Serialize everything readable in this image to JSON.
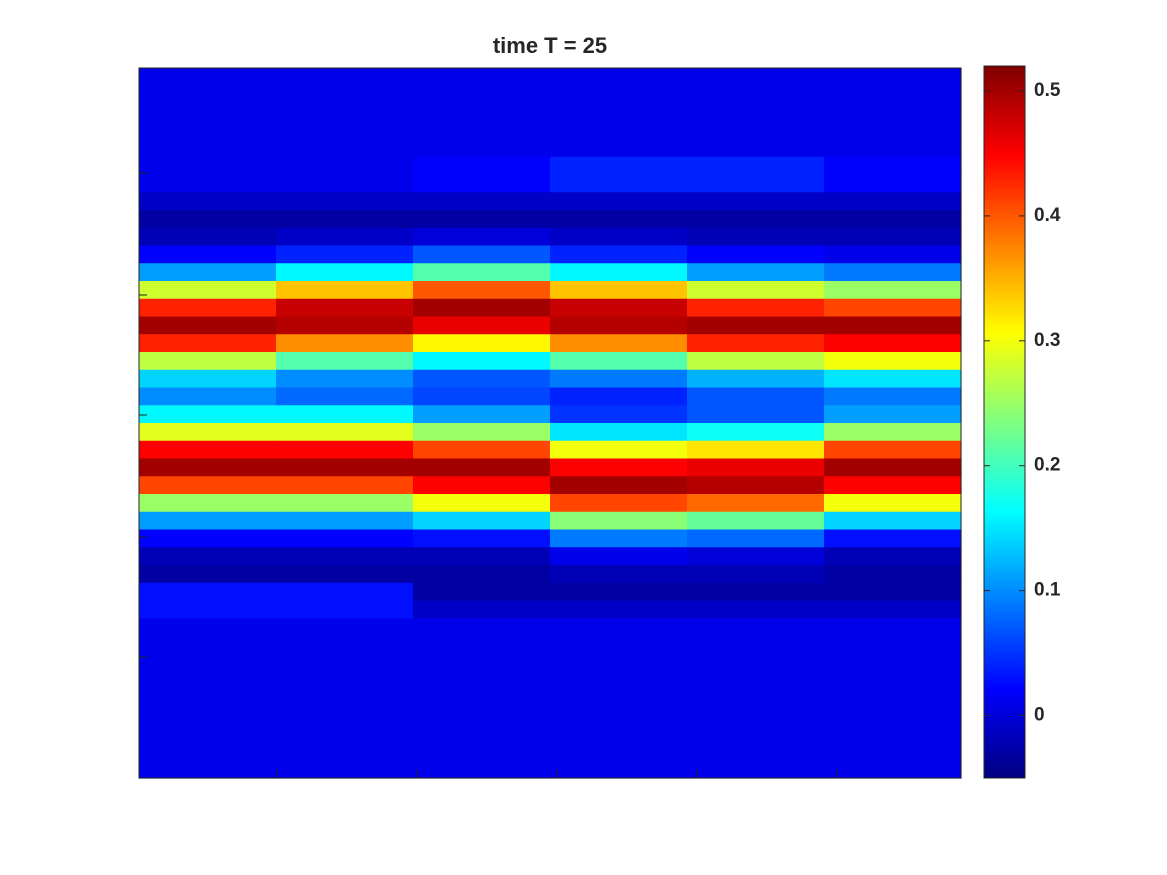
{
  "chart_data": {
    "type": "heatmap",
    "title": "time T = 25",
    "colormap": "jet",
    "clim": [
      -0.05,
      0.52
    ],
    "cticks": [
      0,
      0.1,
      0.2,
      0.3,
      0.4,
      0.5
    ],
    "z": [
      [
        0.01,
        0.01,
        0.01,
        0.01,
        0.01,
        0.01
      ],
      [
        0.01,
        0.01,
        0.01,
        0.01,
        0.01,
        0.01
      ],
      [
        0.01,
        0.01,
        0.01,
        0.01,
        0.01,
        0.01
      ],
      [
        0.01,
        0.01,
        0.01,
        0.01,
        0.01,
        0.01
      ],
      [
        0.01,
        0.01,
        0.01,
        0.01,
        0.01,
        0.01
      ],
      [
        0.01,
        0.01,
        0.02,
        0.04,
        0.04,
        0.02
      ],
      [
        0.01,
        0.01,
        0.02,
        0.04,
        0.04,
        0.02
      ],
      [
        -0.01,
        -0.01,
        -0.01,
        -0.01,
        -0.01,
        -0.01
      ],
      [
        -0.03,
        -0.03,
        -0.03,
        -0.03,
        -0.03,
        -0.03
      ],
      [
        -0.02,
        -0.01,
        0,
        -0.01,
        -0.02,
        -0.02
      ],
      [
        0.02,
        0.04,
        0.07,
        0.04,
        0.02,
        0.01
      ],
      [
        0.11,
        0.16,
        0.21,
        0.16,
        0.11,
        0.09
      ],
      [
        0.28,
        0.34,
        0.4,
        0.34,
        0.28,
        0.25
      ],
      [
        0.43,
        0.48,
        0.5,
        0.48,
        0.43,
        0.41
      ],
      [
        0.5,
        0.49,
        0.46,
        0.49,
        0.5,
        0.5
      ],
      [
        0.43,
        0.37,
        0.31,
        0.37,
        0.43,
        0.45
      ],
      [
        0.27,
        0.21,
        0.16,
        0.21,
        0.27,
        0.3
      ],
      [
        0.14,
        0.1,
        0.07,
        0.09,
        0.12,
        0.15
      ],
      [
        0.1,
        0.08,
        0.06,
        0.04,
        0.07,
        0.09
      ],
      [
        0.16,
        0.16,
        0.11,
        0.05,
        0.07,
        0.11
      ],
      [
        0.29,
        0.29,
        0.25,
        0.15,
        0.17,
        0.25
      ],
      [
        0.45,
        0.45,
        0.41,
        0.3,
        0.32,
        0.41
      ],
      [
        0.5,
        0.5,
        0.5,
        0.45,
        0.46,
        0.5
      ],
      [
        0.41,
        0.41,
        0.45,
        0.5,
        0.49,
        0.45
      ],
      [
        0.25,
        0.25,
        0.3,
        0.41,
        0.39,
        0.3
      ],
      [
        0.11,
        0.11,
        0.14,
        0.24,
        0.22,
        0.14
      ],
      [
        0.02,
        0.02,
        0.03,
        0.09,
        0.08,
        0.03
      ],
      [
        -0.02,
        -0.02,
        -0.02,
        0.01,
        0,
        -0.02
      ],
      [
        -0.03,
        -0.03,
        -0.03,
        -0.02,
        -0.02,
        -0.03
      ],
      [
        0.03,
        0.03,
        -0.03,
        -0.03,
        -0.03,
        -0.03
      ],
      [
        0.03,
        0.03,
        -0.01,
        -0.01,
        -0.01,
        -0.01
      ],
      [
        0.01,
        0.01,
        0.01,
        0.01,
        0.01,
        0.01
      ],
      [
        0.01,
        0.01,
        0.01,
        0.01,
        0.01,
        0.01
      ],
      [
        0.01,
        0.01,
        0.01,
        0.01,
        0.01,
        0.01
      ],
      [
        0.01,
        0.01,
        0.01,
        0.01,
        0.01,
        0.01
      ],
      [
        0.01,
        0.01,
        0.01,
        0.01,
        0.01,
        0.01
      ],
      [
        0.01,
        0.01,
        0.01,
        0.01,
        0.01,
        0.01
      ],
      [
        0.01,
        0.01,
        0.01,
        0.01,
        0.01,
        0.01
      ],
      [
        0.01,
        0.01,
        0.01,
        0.01,
        0.01,
        0.01
      ],
      [
        0.01,
        0.01,
        0.01,
        0.01,
        0.01,
        0.01
      ]
    ]
  }
}
